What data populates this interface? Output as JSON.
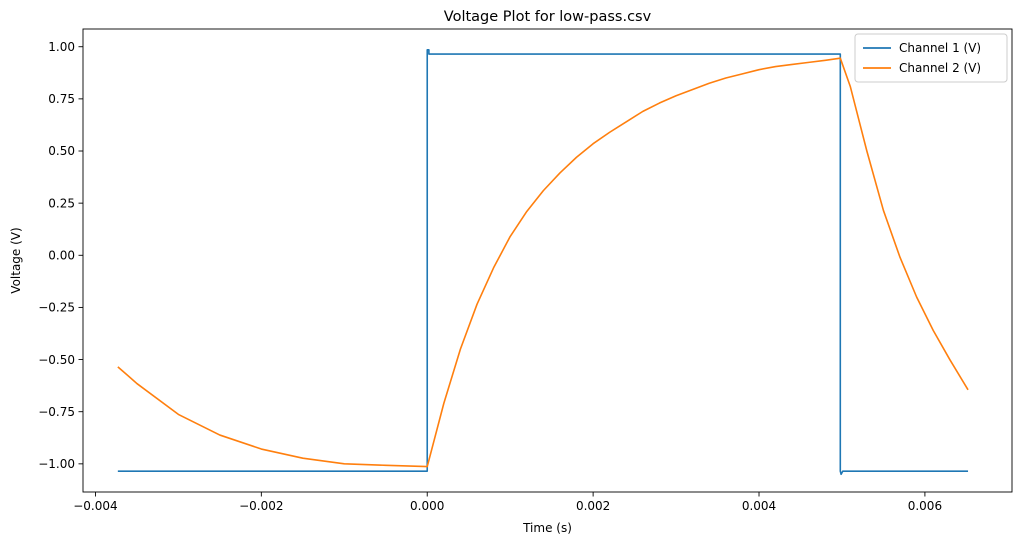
{
  "chart_data": {
    "type": "line",
    "title": "Voltage Plot for low-pass.csv",
    "xlabel": "Time (s)",
    "ylabel": "Voltage (V)",
    "xlim": [
      -0.00415,
      0.00705
    ],
    "ylim": [
      -1.135,
      1.085
    ],
    "xticks": [
      -0.004,
      -0.002,
      0.0,
      0.002,
      0.004,
      0.006
    ],
    "xtick_labels": [
      "−0.004",
      "−0.002",
      "0.000",
      "0.002",
      "0.004",
      "0.006"
    ],
    "yticks": [
      -1.0,
      -0.75,
      -0.5,
      -0.25,
      0.0,
      0.25,
      0.5,
      0.75,
      1.0
    ],
    "ytick_labels": [
      "−1.00",
      "−0.75",
      "−0.50",
      "−0.25",
      "0.00",
      "0.25",
      "0.50",
      "0.75",
      "1.00"
    ],
    "grid": false,
    "legend_position": "top-right",
    "series": [
      {
        "name": "Channel 1 (V)",
        "color": "#1f77b4",
        "x": [
          -0.00373,
          0.0,
          0.0,
          2e-05,
          2e-05,
          0.00498,
          0.00498,
          0.00499,
          0.00501,
          0.00652
        ],
        "y": [
          -1.035,
          -1.035,
          0.985,
          0.985,
          0.965,
          0.965,
          -1.035,
          -1.05,
          -1.035,
          -1.035
        ]
      },
      {
        "name": "Channel 2 (V)",
        "color": "#ff7f0e",
        "x": [
          -0.00373,
          -0.0035,
          -0.003,
          -0.0025,
          -0.002,
          -0.0015,
          -0.001,
          -0.0005,
          0.0,
          0.0002,
          0.0004,
          0.0006,
          0.0008,
          0.001,
          0.0012,
          0.0014,
          0.0016,
          0.0018,
          0.002,
          0.0022,
          0.0024,
          0.0026,
          0.0028,
          0.003,
          0.0032,
          0.0034,
          0.0036,
          0.0038,
          0.004,
          0.0042,
          0.0044,
          0.0046,
          0.0048,
          0.00498,
          0.0051,
          0.0053,
          0.0055,
          0.0057,
          0.0059,
          0.0061,
          0.0063,
          0.00652
        ],
        "y": [
          -0.535,
          -0.615,
          -0.763,
          -0.862,
          -0.929,
          -0.973,
          -1.0,
          -1.007,
          -1.013,
          -0.71,
          -0.45,
          -0.235,
          -0.06,
          0.09,
          0.21,
          0.31,
          0.395,
          0.47,
          0.535,
          0.59,
          0.64,
          0.69,
          0.73,
          0.765,
          0.795,
          0.825,
          0.85,
          0.87,
          0.89,
          0.905,
          0.915,
          0.925,
          0.935,
          0.945,
          0.81,
          0.5,
          0.215,
          -0.01,
          -0.2,
          -0.36,
          -0.5,
          -0.645
        ]
      }
    ]
  }
}
